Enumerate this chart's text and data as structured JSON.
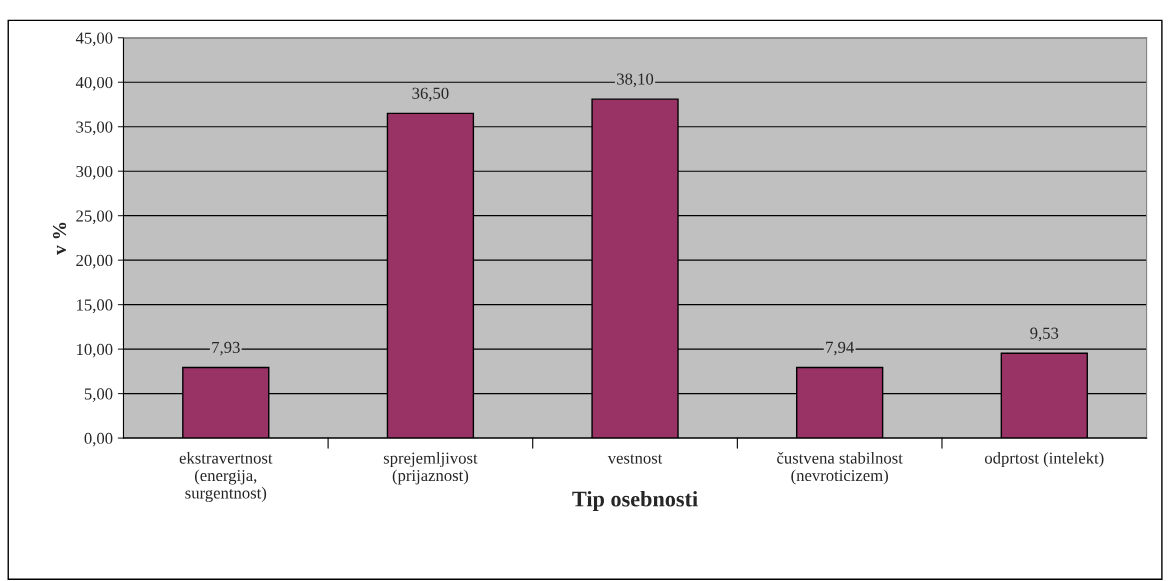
{
  "chart_data": {
    "type": "bar",
    "xlabel": "Tip osebnosti",
    "ylabel": "v %",
    "categories": [
      "ekstravertnost\n(energija,\nsurgentnost)",
      "sprejemljivost\n(prijaznost)",
      "vestnost",
      "čustvena stabilnost\n(nevroticizem)",
      "odprtost (intelekt)"
    ],
    "values": [
      7.93,
      36.5,
      38.1,
      7.94,
      9.53
    ],
    "value_labels": [
      "7,93",
      "36,50",
      "38,10",
      "7,94",
      "9,53"
    ],
    "color": "#993366",
    "ylim": [
      0,
      45
    ],
    "yticks": [
      {
        "value": 0,
        "label": "0,00"
      },
      {
        "value": 5,
        "label": "5,00"
      },
      {
        "value": 10,
        "label": "10,00"
      },
      {
        "value": 15,
        "label": "15,00"
      },
      {
        "value": 20,
        "label": "20,00"
      },
      {
        "value": 25,
        "label": "25,00"
      },
      {
        "value": 30,
        "label": "30,00"
      },
      {
        "value": 35,
        "label": "35,00"
      },
      {
        "value": 40,
        "label": "40,00"
      },
      {
        "value": 45,
        "label": "45,00"
      }
    ],
    "grid": "y"
  }
}
